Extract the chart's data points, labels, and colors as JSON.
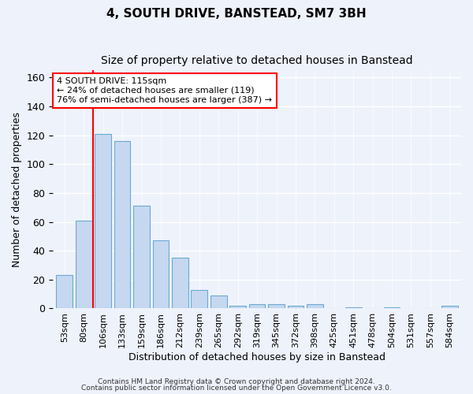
{
  "title1": "4, SOUTH DRIVE, BANSTEAD, SM7 3BH",
  "title2": "Size of property relative to detached houses in Banstead",
  "xlabel": "Distribution of detached houses by size in Banstead",
  "ylabel": "Number of detached properties",
  "categories": [
    "53sqm",
    "80sqm",
    "106sqm",
    "133sqm",
    "159sqm",
    "186sqm",
    "212sqm",
    "239sqm",
    "265sqm",
    "292sqm",
    "319sqm",
    "345sqm",
    "372sqm",
    "398sqm",
    "425sqm",
    "451sqm",
    "478sqm",
    "504sqm",
    "531sqm",
    "557sqm",
    "584sqm"
  ],
  "values": [
    23,
    61,
    121,
    116,
    71,
    47,
    35,
    13,
    9,
    2,
    3,
    3,
    2,
    3,
    0,
    1,
    0,
    1,
    0,
    0,
    2
  ],
  "bar_color": "#c5d8f0",
  "bar_edgecolor": "#6aaad4",
  "vline_color": "red",
  "vline_x_index": 2,
  "annotation_text": "4 SOUTH DRIVE: 115sqm\n← 24% of detached houses are smaller (119)\n76% of semi-detached houses are larger (387) →",
  "annotation_box_color": "white",
  "annotation_box_edgecolor": "red",
  "ylim": [
    0,
    165
  ],
  "yticks": [
    0,
    20,
    40,
    60,
    80,
    100,
    120,
    140,
    160
  ],
  "footer1": "Contains HM Land Registry data © Crown copyright and database right 2024.",
  "footer2": "Contains public sector information licensed under the Open Government Licence v3.0.",
  "background_color": "#eef2fb",
  "grid_color": "white",
  "title1_fontsize": 11,
  "title2_fontsize": 10,
  "ylabel_fontsize": 9,
  "xlabel_fontsize": 9,
  "tick_fontsize": 8,
  "annotation_fontsize": 8,
  "footer_fontsize": 6.5
}
